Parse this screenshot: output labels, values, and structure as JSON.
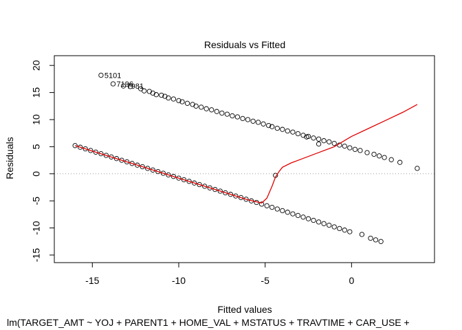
{
  "chart_data": {
    "type": "scatter",
    "title": "Residuals vs Fitted",
    "xlabel": "Fitted values",
    "ylabel": "Residuals",
    "subtitle": "lm(TARGET_AMT ~ YOJ + PARENT1 + HOME_VAL + MSTATUS + TRAVTIME + CAR_USE +",
    "xlim": [
      -17.2,
      4.8
    ],
    "ylim": [
      -16.4,
      21.8
    ],
    "xticks": [
      -15,
      -10,
      -5,
      0
    ],
    "yticks": [
      -15,
      -10,
      -5,
      0,
      5,
      10,
      15,
      20
    ],
    "xtick_labels": [
      "-15",
      "-10",
      "-5",
      "0"
    ],
    "ytick_labels": [
      "-15",
      "-10",
      "-5",
      "0",
      "5",
      "10",
      "15",
      "20"
    ],
    "reference_line": {
      "y": 0,
      "style": "dotted",
      "color": "#9a9a9a"
    },
    "series": [
      {
        "group": "upper-band",
        "marker": "open-circle",
        "x": [
          -14.5,
          -13.8,
          -13.2,
          -12.8,
          -12.2,
          -12.0,
          -11.7,
          -11.5,
          -11.3,
          -11.0,
          -10.8,
          -10.6,
          -10.3,
          -10.0,
          -9.8,
          -9.5,
          -9.2,
          -9.0,
          -8.7,
          -8.4,
          -8.1,
          -7.8,
          -7.5,
          -7.2,
          -6.9,
          -6.6,
          -6.3,
          -6.0,
          -5.7,
          -5.4,
          -5.1,
          -4.8,
          -4.6,
          -4.3,
          -4.0,
          -3.7,
          -3.4,
          -3.1,
          -2.8,
          -2.5,
          -2.2,
          -1.9,
          -1.6,
          -1.3,
          -1.0,
          -0.7,
          -0.4,
          -0.1,
          0.2,
          0.5,
          0.9,
          1.3,
          1.6,
          1.9,
          2.3,
          2.8,
          3.8,
          -4.4,
          -2.6,
          -1.9
        ],
        "y": [
          18.2,
          16.6,
          16.2,
          16.1,
          15.7,
          15.3,
          15.2,
          14.9,
          14.6,
          14.5,
          14.3,
          14.0,
          13.8,
          13.5,
          13.3,
          13.0,
          12.8,
          12.5,
          12.3,
          12.0,
          11.8,
          11.5,
          11.2,
          11.0,
          10.7,
          10.5,
          10.2,
          10.0,
          9.7,
          9.5,
          9.2,
          8.9,
          8.7,
          8.4,
          8.2,
          7.9,
          7.7,
          7.4,
          7.1,
          6.9,
          6.6,
          6.4,
          6.1,
          5.9,
          5.6,
          5.3,
          5.1,
          4.8,
          4.5,
          4.3,
          3.9,
          3.6,
          3.3,
          3.0,
          2.6,
          2.1,
          1.0,
          -0.3,
          6.8,
          5.5
        ]
      },
      {
        "group": "lower-band",
        "marker": "open-circle",
        "x": [
          -16.0,
          -15.7,
          -15.4,
          -15.1,
          -14.8,
          -14.5,
          -14.2,
          -13.9,
          -13.6,
          -13.3,
          -13.0,
          -12.7,
          -12.4,
          -12.1,
          -11.8,
          -11.5,
          -11.2,
          -10.9,
          -10.6,
          -10.3,
          -10.0,
          -9.7,
          -9.4,
          -9.1,
          -8.8,
          -8.5,
          -8.2,
          -7.9,
          -7.6,
          -7.3,
          -7.0,
          -6.7,
          -6.4,
          -6.1,
          -5.8,
          -5.5,
          -5.2,
          -4.9,
          -4.6,
          -4.3,
          -4.0,
          -3.7,
          -3.4,
          -3.1,
          -2.8,
          -2.5,
          -2.2,
          -1.9,
          -1.6,
          -1.3,
          -1.0,
          -0.7,
          -0.4,
          -0.1,
          0.6,
          1.1,
          1.4,
          1.7
        ],
        "y": [
          5.2,
          4.9,
          4.6,
          4.3,
          4.0,
          3.7,
          3.4,
          3.1,
          2.8,
          2.5,
          2.2,
          1.9,
          1.6,
          1.3,
          1.0,
          0.7,
          0.4,
          0.1,
          -0.2,
          -0.5,
          -0.8,
          -1.1,
          -1.4,
          -1.7,
          -2.0,
          -2.3,
          -2.6,
          -2.9,
          -3.2,
          -3.5,
          -3.8,
          -4.1,
          -4.4,
          -4.7,
          -5.0,
          -5.3,
          -5.6,
          -5.9,
          -6.2,
          -6.5,
          -6.8,
          -7.1,
          -7.4,
          -7.7,
          -8.0,
          -8.3,
          -8.6,
          -8.9,
          -9.2,
          -9.5,
          -9.8,
          -10.1,
          -10.4,
          -10.7,
          -11.2,
          -11.9,
          -12.2,
          -12.5
        ]
      }
    ],
    "smoother": {
      "color": "#e00000",
      "x": [
        -16.0,
        -14.0,
        -12.0,
        -10.0,
        -8.0,
        -6.0,
        -5.2,
        -4.9,
        -4.6,
        -4.4,
        -4.2,
        -4.0,
        -3.5,
        -3.0,
        -2.0,
        -1.0,
        0.0,
        1.0,
        2.0,
        3.0,
        3.8
      ],
      "y": [
        5.2,
        3.2,
        1.2,
        -0.8,
        -2.8,
        -4.8,
        -5.4,
        -4.5,
        -2.3,
        -0.6,
        0.4,
        1.2,
        2.0,
        2.6,
        3.8,
        5.0,
        6.9,
        8.4,
        9.9,
        11.4,
        12.8
      ]
    },
    "point_labels": [
      {
        "text": "5101",
        "x": -14.5,
        "y": 18.2
      },
      {
        "text": "7196",
        "x": -13.8,
        "y": 16.6
      },
      {
        "text": "7981",
        "x": -13.2,
        "y": 16.2
      }
    ]
  }
}
